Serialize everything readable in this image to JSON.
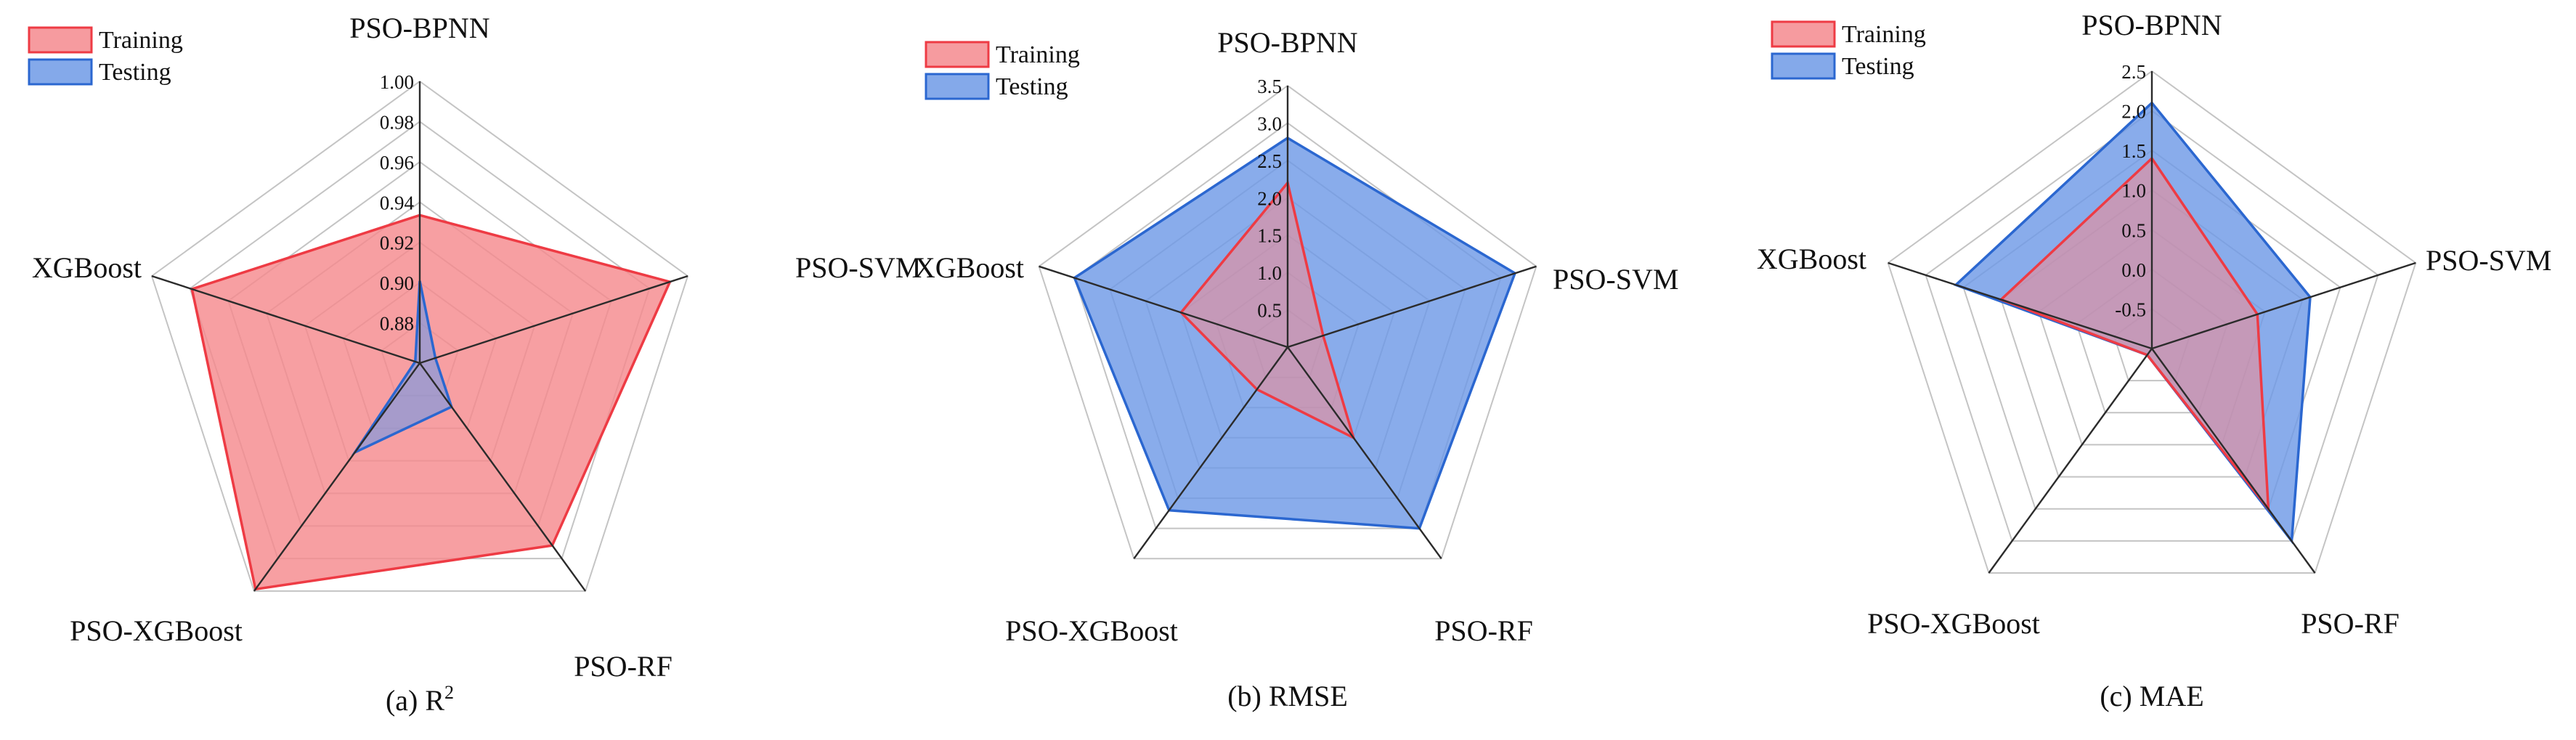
{
  "colors": {
    "training_fill": "#f58a8e",
    "training_stroke": "#ee3b44",
    "testing_fill": "#6f9ae6",
    "testing_stroke": "#2b67d0"
  },
  "chart_data": [
    {
      "type": "radar",
      "caption": "(a)  R",
      "caption_sup": "2",
      "axes": [
        "PSO-BPNN",
        "PSO-SVM",
        "PSO-RF",
        "PSO-XGBoost",
        "XGBoost"
      ],
      "ticks": [
        "0.88",
        "0.90",
        "0.92",
        "0.94",
        "0.96",
        "0.98",
        "1.00"
      ],
      "range": [
        0.88,
        1.0
      ],
      "grid": true,
      "legend_position": "top-left",
      "series": [
        {
          "name": "Training",
          "values": [
            0.943,
            0.992,
            0.976,
            0.999,
            0.982
          ],
          "z": "back"
        },
        {
          "name": "Testing",
          "values": [
            0.915,
            0.887,
            0.903,
            0.927,
            0.882
          ],
          "z": "front"
        }
      ]
    },
    {
      "type": "radar",
      "caption": "(b)  RMSE",
      "axes": [
        "PSO-BPNN",
        "PSO-SVM",
        "PSO-RF",
        "PSO-XGBoost",
        "XGBoost"
      ],
      "ticks": [
        "0.5",
        "1.0",
        "1.5",
        "2.0",
        "2.5",
        "3.0",
        "3.5"
      ],
      "range": [
        0,
        3.5
      ],
      "grid": true,
      "legend_position": "top-left",
      "series": [
        {
          "name": "Testing",
          "values": [
            2.8,
            3.2,
            3.0,
            2.7,
            3.0
          ],
          "z": "back"
        },
        {
          "name": "Training",
          "values": [
            2.2,
            0.5,
            1.5,
            0.7,
            1.5
          ],
          "z": "front"
        }
      ]
    },
    {
      "type": "radar",
      "caption": "(c)  MAE",
      "axes": [
        "PSO-BPNN",
        "PSO-SVM",
        "PSO-RF",
        "PSO-XGBoost",
        "XGBoost"
      ],
      "ticks": [
        "-0.5",
        "0.0",
        "0.5",
        "1.0",
        "1.5",
        "2.0",
        "2.5"
      ],
      "range": [
        -1.0,
        2.5
      ],
      "grid": true,
      "legend_position": "top-left",
      "series": [
        {
          "name": "Testing",
          "values": [
            2.1,
            1.1,
            2.0,
            -0.9,
            1.6
          ],
          "z": "back"
        },
        {
          "name": "Training",
          "values": [
            1.4,
            0.4,
            1.5,
            -0.9,
            1.0
          ],
          "z": "front"
        }
      ]
    }
  ]
}
